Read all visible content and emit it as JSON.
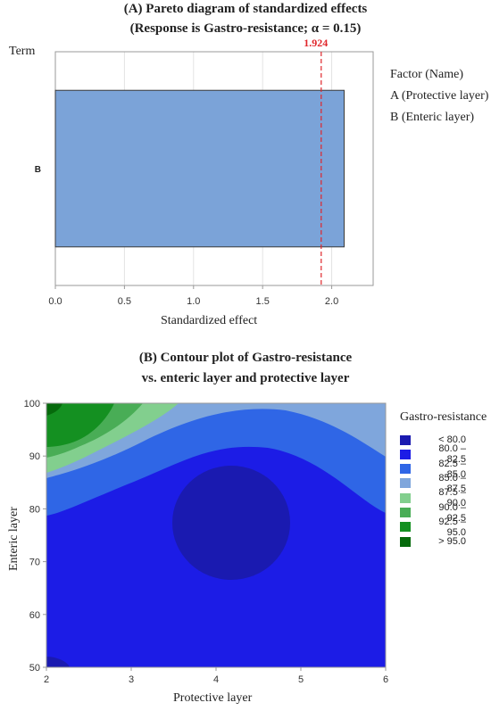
{
  "chart_data": [
    {
      "type": "bar",
      "title": "(A) Pareto diagram of standardized effects",
      "subtitle": "(Response is Gastro-resistance; α = 0.15)",
      "ylabel": "Term",
      "xlabel": "Standardized effect",
      "categories": [
        "B"
      ],
      "values": [
        2.09
      ],
      "xlim": [
        0,
        2.3
      ],
      "xticks": [
        "0.0",
        "0.5",
        "1.0",
        "1.5",
        "2.0"
      ],
      "reference_line": {
        "value": 1.924,
        "label": "1.924"
      },
      "legend": {
        "title": "Factor (Name)",
        "items": [
          "A (Protective layer)",
          "B (Enteric layer)"
        ]
      },
      "grid": true,
      "colors": {
        "bar": "#7ba3d8",
        "reference": "#e0262b"
      }
    },
    {
      "type": "heatmap",
      "title": "(B) Contour plot of Gastro-resistance",
      "subtitle": "vs. enteric layer and protective layer",
      "xlabel": "Protective layer",
      "ylabel": "Enteric layer",
      "xlim": [
        2,
        6
      ],
      "ylim": [
        50,
        100
      ],
      "xticks": [
        "2",
        "3",
        "4",
        "5",
        "6"
      ],
      "yticks": [
        "50",
        "60",
        "70",
        "80",
        "90",
        "100"
      ],
      "legend": {
        "title": "Gastro-resistance",
        "position": "right",
        "items": [
          {
            "label": "< 80.0",
            "color": "#1a1ab0"
          },
          {
            "label": "80.0 – 82.5",
            "color": "#1c1ce6"
          },
          {
            "label": "82.5 – 85.0",
            "color": "#2f66e6"
          },
          {
            "label": "85.0 – 87.5",
            "color": "#7fa6dc"
          },
          {
            "label": "87.5 – 90.0",
            "color": "#82cf8e"
          },
          {
            "label": "90.0 – 92.5",
            "color": "#49ad56"
          },
          {
            "label": "92.5 – 95.0",
            "color": "#149021"
          },
          {
            "label": "> 95.0",
            "color": "#066a0c"
          }
        ]
      }
    }
  ]
}
